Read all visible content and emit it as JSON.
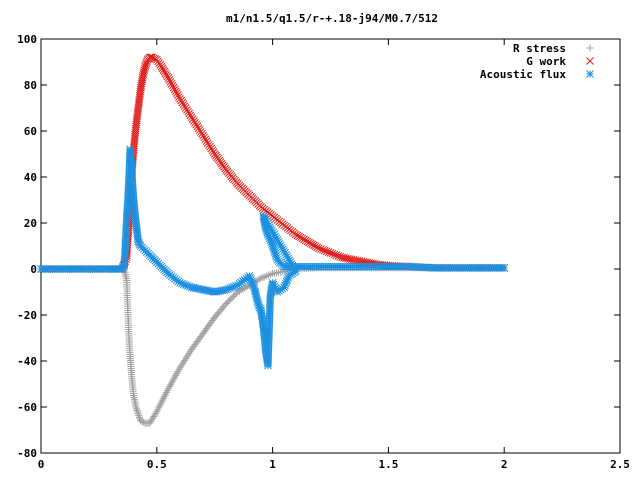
{
  "chart_data": {
    "type": "scatter",
    "title": "m1/n1.5/q1.5/r-+.18-j94/M0.7/512",
    "xlabel": "",
    "ylabel": "",
    "xlim": [
      0,
      2.5
    ],
    "ylim": [
      -80,
      100
    ],
    "xticks": [
      "0",
      "0.5",
      "1",
      "1.5",
      "2",
      "2.5"
    ],
    "yticks": [
      "-80",
      "-60",
      "-40",
      "-20",
      "0",
      "20",
      "40",
      "60",
      "80",
      "100"
    ],
    "grid": false,
    "legend_position": "top-right",
    "series": [
      {
        "name": "R stress",
        "marker": "plus",
        "color": "#a0a0a0",
        "points": [
          [
            0.0,
            0
          ],
          [
            0.05,
            0
          ],
          [
            0.1,
            0
          ],
          [
            0.15,
            0
          ],
          [
            0.2,
            0
          ],
          [
            0.25,
            0
          ],
          [
            0.3,
            0
          ],
          [
            0.34,
            0
          ],
          [
            0.36,
            0
          ],
          [
            0.37,
            -5
          ],
          [
            0.375,
            -18
          ],
          [
            0.38,
            -30
          ],
          [
            0.385,
            -38
          ],
          [
            0.39,
            -45
          ],
          [
            0.4,
            -55
          ],
          [
            0.41,
            -60
          ],
          [
            0.42,
            -63
          ],
          [
            0.43,
            -66
          ],
          [
            0.45,
            -67
          ],
          [
            0.47,
            -67
          ],
          [
            0.5,
            -62
          ],
          [
            0.55,
            -52
          ],
          [
            0.6,
            -43
          ],
          [
            0.65,
            -35
          ],
          [
            0.7,
            -28
          ],
          [
            0.75,
            -21
          ],
          [
            0.8,
            -15
          ],
          [
            0.85,
            -10
          ],
          [
            0.9,
            -7
          ],
          [
            0.95,
            -4
          ],
          [
            1.0,
            -2
          ],
          [
            1.05,
            -1
          ],
          [
            1.1,
            0
          ],
          [
            1.2,
            0.5
          ],
          [
            1.3,
            0.5
          ],
          [
            1.4,
            0.5
          ],
          [
            1.5,
            0.5
          ],
          [
            1.6,
            0.5
          ],
          [
            1.7,
            0.5
          ],
          [
            1.8,
            0.5
          ],
          [
            1.9,
            0.5
          ],
          [
            2.0,
            0.5
          ]
        ]
      },
      {
        "name": "G work",
        "marker": "cross",
        "color": "#e0201c",
        "points": [
          [
            0.0,
            0
          ],
          [
            0.1,
            0
          ],
          [
            0.2,
            0
          ],
          [
            0.3,
            0
          ],
          [
            0.35,
            0
          ],
          [
            0.37,
            5
          ],
          [
            0.38,
            20
          ],
          [
            0.39,
            38
          ],
          [
            0.4,
            52
          ],
          [
            0.41,
            62
          ],
          [
            0.42,
            70
          ],
          [
            0.43,
            78
          ],
          [
            0.44,
            84
          ],
          [
            0.45,
            88
          ],
          [
            0.46,
            91
          ],
          [
            0.47,
            92
          ],
          [
            0.48,
            92
          ],
          [
            0.5,
            91
          ],
          [
            0.52,
            88
          ],
          [
            0.55,
            83
          ],
          [
            0.6,
            74
          ],
          [
            0.65,
            66
          ],
          [
            0.7,
            58
          ],
          [
            0.75,
            50
          ],
          [
            0.8,
            43
          ],
          [
            0.85,
            37
          ],
          [
            0.9,
            32
          ],
          [
            0.95,
            27
          ],
          [
            1.0,
            23
          ],
          [
            1.05,
            19
          ],
          [
            1.1,
            15
          ],
          [
            1.15,
            12
          ],
          [
            1.2,
            9
          ],
          [
            1.25,
            7
          ],
          [
            1.3,
            5
          ],
          [
            1.35,
            4
          ],
          [
            1.4,
            3
          ],
          [
            1.45,
            2
          ],
          [
            1.5,
            1.5
          ],
          [
            1.6,
            1
          ],
          [
            1.7,
            0.5
          ],
          [
            1.8,
            0.5
          ],
          [
            1.9,
            0.5
          ],
          [
            2.0,
            0.5
          ]
        ]
      },
      {
        "name": "Acoustic flux",
        "marker": "star",
        "color": "#1e90e0",
        "points": [
          [
            0.0,
            0
          ],
          [
            0.1,
            0
          ],
          [
            0.2,
            0
          ],
          [
            0.3,
            0
          ],
          [
            0.35,
            0
          ],
          [
            0.36,
            2
          ],
          [
            0.37,
            22
          ],
          [
            0.375,
            30
          ],
          [
            0.38,
            40
          ],
          [
            0.385,
            52
          ],
          [
            0.39,
            45
          ],
          [
            0.4,
            30
          ],
          [
            0.41,
            20
          ],
          [
            0.42,
            12
          ],
          [
            0.43,
            10
          ],
          [
            0.45,
            8
          ],
          [
            0.47,
            6
          ],
          [
            0.5,
            3
          ],
          [
            0.52,
            1
          ],
          [
            0.55,
            -2
          ],
          [
            0.6,
            -6
          ],
          [
            0.65,
            -8
          ],
          [
            0.7,
            -9
          ],
          [
            0.75,
            -10
          ],
          [
            0.8,
            -9
          ],
          [
            0.85,
            -7
          ],
          [
            0.9,
            -3
          ],
          [
            0.92,
            -8
          ],
          [
            0.94,
            -16
          ],
          [
            0.95,
            -18
          ],
          [
            0.96,
            -25
          ],
          [
            0.97,
            -35
          ],
          [
            0.98,
            -42
          ],
          [
            0.99,
            -12
          ],
          [
            1.0,
            -6
          ],
          [
            1.02,
            -10
          ],
          [
            1.05,
            -8
          ],
          [
            1.07,
            -3
          ],
          [
            1.1,
            -1
          ],
          [
            0.96,
            23
          ],
          [
            0.97,
            18
          ],
          [
            0.98,
            15
          ],
          [
            1.0,
            10
          ],
          [
            1.02,
            4
          ],
          [
            1.05,
            1
          ],
          [
            1.1,
            1
          ],
          [
            1.2,
            1
          ],
          [
            1.3,
            1
          ],
          [
            1.4,
            1
          ],
          [
            1.5,
            1
          ],
          [
            1.6,
            1
          ],
          [
            1.7,
            0.5
          ],
          [
            1.8,
            0.5
          ],
          [
            1.9,
            0.5
          ],
          [
            2.0,
            0.5
          ]
        ]
      }
    ]
  }
}
